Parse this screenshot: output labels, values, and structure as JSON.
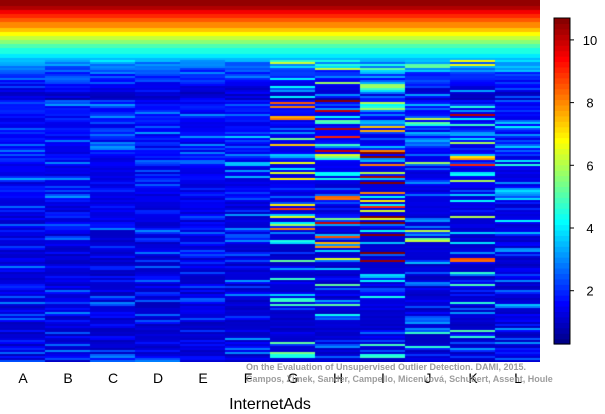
{
  "chart_data": {
    "type": "heatmap",
    "title": "",
    "xlabel": "InternetAds",
    "ylabel": "",
    "columns": [
      "A",
      "B",
      "C",
      "D",
      "E",
      "F",
      "G",
      "H",
      "I",
      "J",
      "K",
      "L"
    ],
    "colorbar": {
      "range": [
        0.3,
        10.7
      ],
      "ticks": [
        2,
        4,
        6,
        8,
        10
      ],
      "colormap": "jet",
      "colors": [
        "#00008f",
        "#0000ff",
        "#3080ff",
        "#00d8ff",
        "#40ffb8",
        "#a0ff60",
        "#ffe000",
        "#ff8000",
        "#ff2000",
        "#c00000",
        "#800000"
      ]
    },
    "rows_shown": "sorted outlier scores, 12 methods",
    "top_band_values": [
      10.5,
      10.2,
      9.5,
      9.0,
      8.5,
      8.0,
      7.4,
      6.8,
      6.2,
      5.6,
      5.0,
      4.5,
      4.0,
      3.5,
      3.1,
      2.7,
      2.3,
      2.0,
      1.7,
      1.5,
      1.3,
      1.15,
      1.0
    ]
  },
  "watermark": {
    "line1": "On the Evaluation of Unsupervised Outlier Detection. DAMI, 2015.",
    "line2": "Campos, Zimek, Sander, Campello, Micenková, Schubert, Assent, Houle"
  }
}
